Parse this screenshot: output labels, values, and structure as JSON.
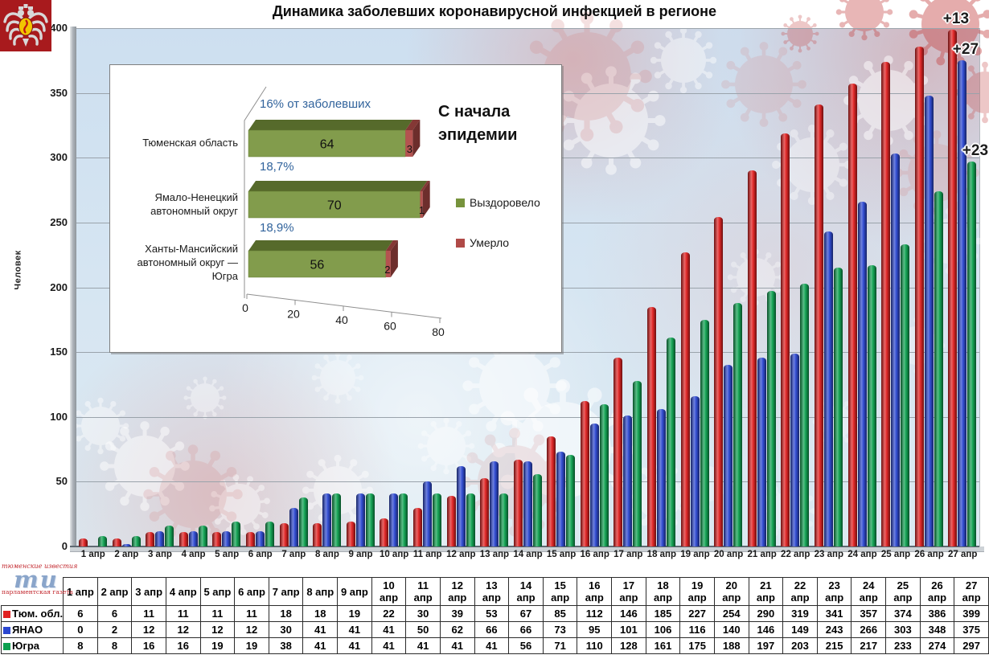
{
  "header": {
    "title": "Динамика заболевших коронавирусной инфекцией в регионе"
  },
  "chart_data": [
    {
      "type": "bar",
      "title": "Динамика заболевших коронавирусной инфекцией в регионе",
      "xlabel": "",
      "ylabel": "Человек",
      "ylim": [
        0,
        400
      ],
      "yticks": [
        0,
        50,
        100,
        150,
        200,
        250,
        300,
        350,
        400
      ],
      "grid": true,
      "legend_position": "none",
      "categories": [
        "1 апр",
        "2 апр",
        "3 апр",
        "4 апр",
        "5 апр",
        "6 апр",
        "7 апр",
        "8 апр",
        "9 апр",
        "10 апр",
        "11 апр",
        "12 апр",
        "13 апр",
        "14 апр",
        "15 апр",
        "16 апр",
        "17 апр",
        "18 апр",
        "19 апр",
        "20 апр",
        "21 апр",
        "22 апр",
        "23 апр",
        "24 апр",
        "25 апр",
        "26 апр",
        "27 апр"
      ],
      "series": [
        {
          "name": "Тюм. обл.",
          "color": "#e02020",
          "values": [
            6,
            6,
            11,
            11,
            11,
            11,
            18,
            18,
            19,
            22,
            30,
            39,
            53,
            67,
            85,
            112,
            146,
            185,
            227,
            254,
            290,
            319,
            341,
            357,
            374,
            386,
            399
          ]
        },
        {
          "name": "ЯНАО",
          "color": "#2b47d0",
          "values": [
            0,
            2,
            12,
            12,
            12,
            12,
            30,
            41,
            41,
            41,
            50,
            62,
            66,
            66,
            73,
            95,
            101,
            106,
            116,
            140,
            146,
            149,
            243,
            266,
            303,
            348,
            375
          ]
        },
        {
          "name": "Югра",
          "color": "#0ca04f",
          "values": [
            8,
            8,
            16,
            16,
            19,
            19,
            38,
            41,
            41,
            41,
            41,
            41,
            41,
            56,
            71,
            110,
            128,
            161,
            175,
            188,
            197,
            203,
            215,
            217,
            233,
            274,
            297
          ]
        }
      ],
      "annotations": [
        {
          "series": 0,
          "category": "27 апр",
          "label": "+13"
        },
        {
          "series": 1,
          "category": "27 апр",
          "label": "+27"
        },
        {
          "series": 2,
          "category": "27 апр",
          "label": "+23"
        }
      ]
    },
    {
      "type": "bar",
      "orientation": "horizontal",
      "style": "3d",
      "title": "С начала эпидемии",
      "xlim": [
        0,
        80
      ],
      "xticks": [
        0,
        20,
        40,
        60,
        80
      ],
      "legend_position": "right",
      "categories": [
        "Тюменская область",
        "Ямало-Ненецкий автономный округ",
        "Ханты-Мансийский автономный округ — Югра"
      ],
      "series": [
        {
          "name": "Выздоровело",
          "color": "#77933c",
          "values": [
            64,
            70,
            56
          ]
        },
        {
          "name": "Умерло",
          "color": "#b04a47",
          "values": [
            3,
            1,
            2
          ]
        }
      ],
      "percent_labels": [
        "16% от заболевших",
        "18,7%",
        "18,9%"
      ],
      "percent_label_color": "#31639c"
    }
  ],
  "table": {
    "columns": [
      "1 апр",
      "2 апр",
      "3 апр",
      "4 апр",
      "5 апр",
      "6 апр",
      "7 апр",
      "8 апр",
      "9 апр",
      "10 апр",
      "11 апр",
      "12 апр",
      "13 апр",
      "14 апр",
      "15 апр",
      "16 апр",
      "17 апр",
      "18 апр",
      "19 апр",
      "20 апр",
      "21 апр",
      "22 апр",
      "23 апр",
      "24 апр",
      "25 апр",
      "26 апр",
      "27 апр"
    ],
    "rows": [
      {
        "label": "Тюм. обл.",
        "color": "#e02020",
        "values": [
          6,
          6,
          11,
          11,
          11,
          11,
          18,
          18,
          19,
          22,
          30,
          39,
          53,
          67,
          85,
          112,
          146,
          185,
          227,
          254,
          290,
          319,
          341,
          357,
          374,
          386,
          399
        ]
      },
      {
        "label": "ЯНАО",
        "color": "#2b47d0",
        "values": [
          0,
          2,
          12,
          12,
          12,
          12,
          30,
          41,
          41,
          41,
          50,
          62,
          66,
          66,
          73,
          95,
          101,
          106,
          116,
          140,
          146,
          149,
          243,
          266,
          303,
          348,
          375
        ]
      },
      {
        "label": "Югра",
        "color": "#0ca04f",
        "values": [
          8,
          8,
          16,
          16,
          19,
          19,
          38,
          41,
          41,
          41,
          41,
          41,
          41,
          56,
          71,
          110,
          128,
          161,
          175,
          188,
          197,
          203,
          215,
          217,
          233,
          274,
          297
        ]
      }
    ]
  },
  "logos": {
    "top_left_icon": "coat-of-arms-emblem",
    "bottom_left": {
      "line1": "тюменские известия",
      "big": "ти",
      "line2": "парламентская газета"
    }
  },
  "colors": {
    "plot_bg": "#d5e4f1",
    "grid": "#9aa3ab"
  }
}
